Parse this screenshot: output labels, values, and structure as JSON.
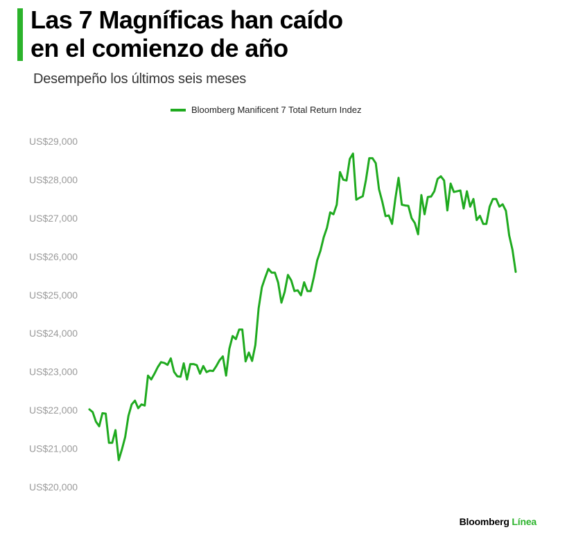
{
  "header": {
    "title_line1": "Las 7 Magníficas han caído",
    "title_line2": "en el comienzo de año",
    "subtitle": "Desempeño los últimos seis meses"
  },
  "footer": {
    "brand": "Bloomberg",
    "brand_accent": "Línea"
  },
  "colors": {
    "accent": "#2bb32b",
    "series": "#1faa1f",
    "tick_label": "#9a9a9a"
  },
  "chart_data": {
    "type": "line",
    "title": "Las 7 Magníficas han caído en el comienzo de año",
    "subtitle": "Desempeño los últimos seis meses",
    "xlabel": "",
    "ylabel": "",
    "ylim": [
      20000,
      29000
    ],
    "yticks": [
      20000,
      21000,
      22000,
      23000,
      24000,
      25000,
      26000,
      27000,
      28000,
      29000
    ],
    "ytick_labels": [
      "US$20,000",
      "US$21,000",
      "US$22,000",
      "US$23,000",
      "US$24,000",
      "US$25,000",
      "US$26,000",
      "US$27,000",
      "US$28,000",
      "US$29,000"
    ],
    "grid": false,
    "legend_position": "top-center",
    "x_axis_labels_visible": false,
    "series": [
      {
        "name": "Bloomberg Manificent 7 Total Return Indez",
        "values": [
          22020,
          21950,
          21700,
          21580,
          21920,
          21910,
          21150,
          21150,
          21480,
          20700,
          20980,
          21300,
          21850,
          22150,
          22250,
          22050,
          22150,
          22120,
          22900,
          22800,
          22950,
          23120,
          23250,
          23230,
          23180,
          23350,
          23000,
          22880,
          22870,
          23220,
          22800,
          23200,
          23200,
          23170,
          22950,
          23150,
          22990,
          23030,
          23020,
          23150,
          23300,
          23400,
          22900,
          23600,
          23930,
          23850,
          24100,
          24100,
          23270,
          23500,
          23280,
          23700,
          24650,
          25200,
          25450,
          25680,
          25580,
          25580,
          25320,
          24800,
          25080,
          25520,
          25380,
          25100,
          25120,
          24990,
          25330,
          25100,
          25100,
          25470,
          25900,
          26150,
          26500,
          26750,
          27150,
          27100,
          27350,
          28200,
          28000,
          27980,
          28540,
          28680,
          27480,
          27530,
          27570,
          28000,
          28560,
          28560,
          28430,
          27750,
          27430,
          27050,
          27070,
          26850,
          27500,
          28050,
          27350,
          27330,
          27320,
          27000,
          26870,
          26580,
          27600,
          27100,
          27550,
          27560,
          27700,
          28020,
          28090,
          27980,
          27200,
          27900,
          27680,
          27700,
          27720,
          27250,
          27700,
          27300,
          27500,
          26950,
          27060,
          26850,
          26850,
          27300,
          27500,
          27500,
          27300,
          27360,
          27190,
          26550,
          26180,
          25600
        ]
      }
    ]
  }
}
